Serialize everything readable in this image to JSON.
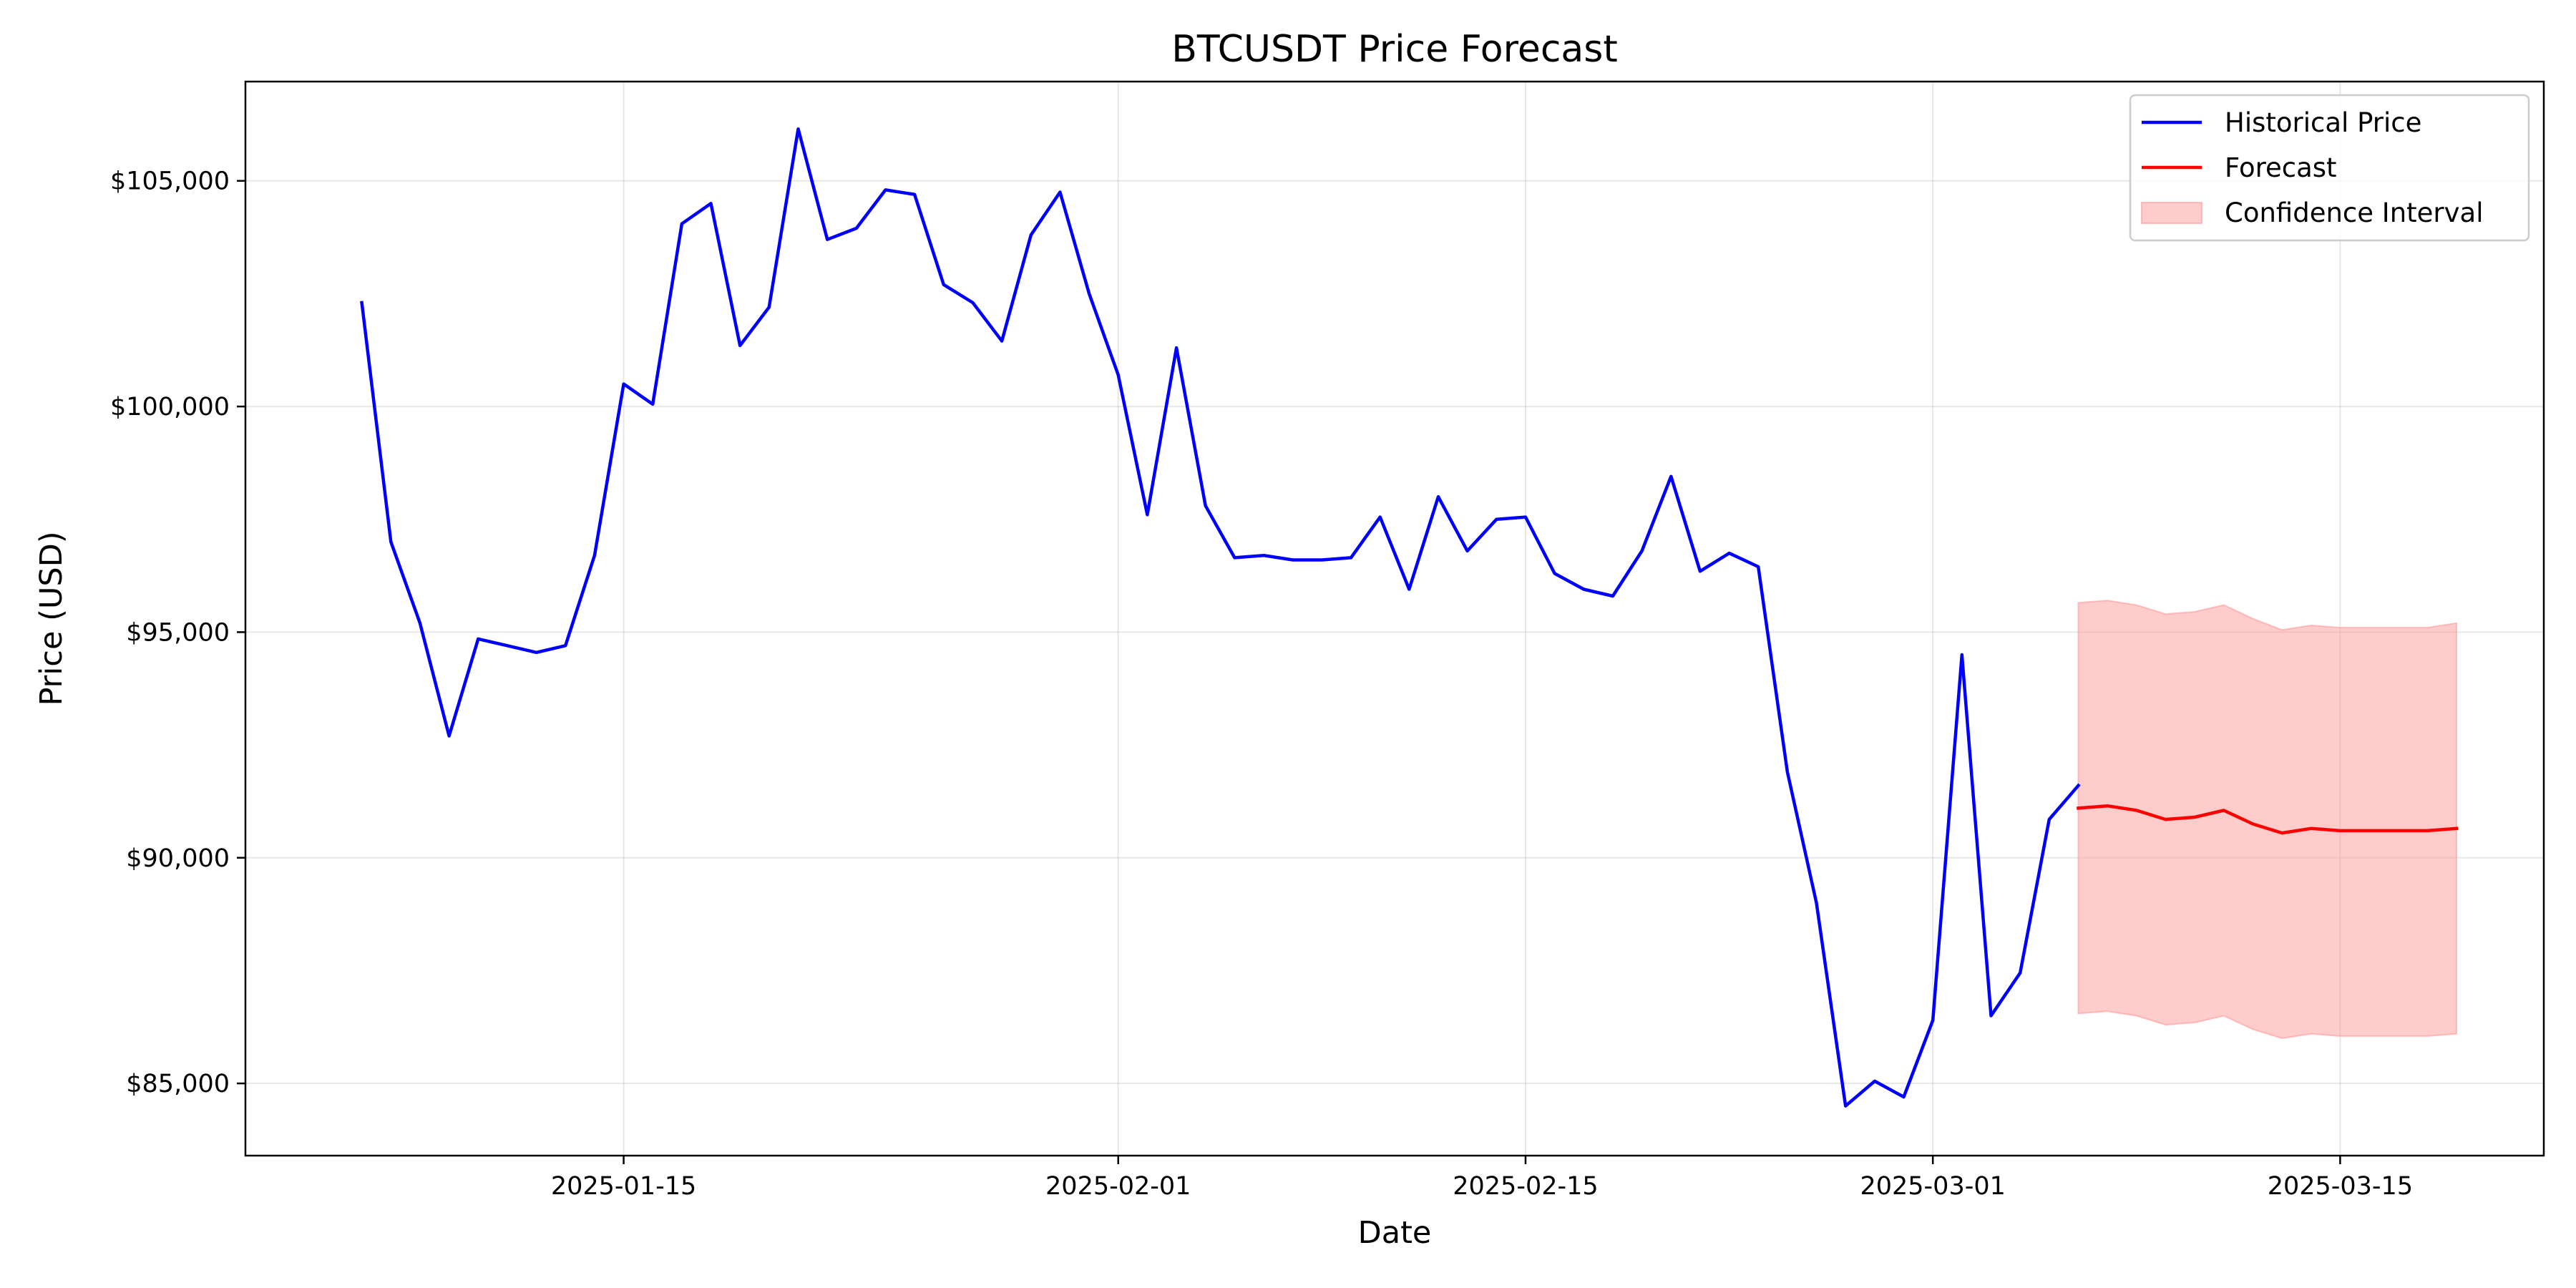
{
  "chart_data": {
    "type": "line",
    "title": "BTCUSDT Price Forecast",
    "xlabel": "Date",
    "ylabel": "Price (USD)",
    "x_ticks": [
      "2025-01-15",
      "2025-02-01",
      "2025-02-15",
      "2025-03-01",
      "2025-03-15"
    ],
    "y_ticks": [
      "$85,000",
      "$90,000",
      "$95,000",
      "$100,000",
      "$105,000"
    ],
    "y_tick_values": [
      85000,
      90000,
      95000,
      100000,
      105000
    ],
    "xlim": [
      "2025-01-02",
      "2025-03-22"
    ],
    "ylim": [
      83400,
      107200
    ],
    "grid": true,
    "legend_position": "top-right",
    "colors": {
      "historical": "#0000ff",
      "forecast": "#ff0000",
      "confidence": "#ff9999"
    },
    "legend": [
      {
        "label": "Historical Price",
        "kind": "line",
        "series": "historical"
      },
      {
        "label": "Forecast",
        "kind": "line",
        "series": "forecast"
      },
      {
        "label": "Confidence Interval",
        "kind": "patch",
        "series": "confidence"
      }
    ],
    "series": [
      {
        "name": "Historical Price",
        "key": "historical",
        "dates": [
          "2025-01-06",
          "2025-01-07",
          "2025-01-08",
          "2025-01-09",
          "2025-01-10",
          "2025-01-11",
          "2025-01-12",
          "2025-01-13",
          "2025-01-14",
          "2025-01-15",
          "2025-01-16",
          "2025-01-17",
          "2025-01-18",
          "2025-01-19",
          "2025-01-20",
          "2025-01-21",
          "2025-01-22",
          "2025-01-23",
          "2025-01-24",
          "2025-01-25",
          "2025-01-26",
          "2025-01-27",
          "2025-01-28",
          "2025-01-29",
          "2025-01-30",
          "2025-01-31",
          "2025-02-01",
          "2025-02-02",
          "2025-02-03",
          "2025-02-04",
          "2025-02-05",
          "2025-02-06",
          "2025-02-07",
          "2025-02-08",
          "2025-02-09",
          "2025-02-10",
          "2025-02-11",
          "2025-02-12",
          "2025-02-13",
          "2025-02-14",
          "2025-02-15",
          "2025-02-16",
          "2025-02-17",
          "2025-02-18",
          "2025-02-19",
          "2025-02-20",
          "2025-02-21",
          "2025-02-22",
          "2025-02-23",
          "2025-02-24",
          "2025-02-25",
          "2025-02-26",
          "2025-02-27",
          "2025-02-28",
          "2025-03-01",
          "2025-03-02",
          "2025-03-03",
          "2025-03-04",
          "2025-03-05",
          "2025-03-06"
        ],
        "values": [
          102300,
          97000,
          95200,
          92700,
          94850,
          94700,
          94550,
          94700,
          96700,
          100500,
          100050,
          104050,
          104500,
          101350,
          102200,
          106150,
          103700,
          103950,
          104800,
          104700,
          102700,
          102300,
          101450,
          103800,
          104750,
          102500,
          100700,
          97600,
          101300,
          97800,
          96650,
          96700,
          96600,
          96600,
          96650,
          97550,
          95950,
          98000,
          96800,
          97500,
          97550,
          96300,
          95950,
          95800,
          96800,
          98450,
          96350,
          96750,
          96450,
          91900,
          89000,
          84500,
          85050,
          84700,
          86400,
          94500,
          86500,
          87450,
          90850,
          91600
        ]
      },
      {
        "name": "Forecast",
        "key": "forecast",
        "dates": [
          "2025-03-06",
          "2025-03-07",
          "2025-03-08",
          "2025-03-09",
          "2025-03-10",
          "2025-03-11",
          "2025-03-12",
          "2025-03-13",
          "2025-03-14",
          "2025-03-15",
          "2025-03-16",
          "2025-03-17",
          "2025-03-18",
          "2025-03-19"
        ],
        "values": [
          91100,
          91150,
          91050,
          90850,
          90900,
          91050,
          90750,
          90550,
          90650,
          90600,
          90600,
          90600,
          90600,
          90650
        ]
      }
    ],
    "confidence_interval": {
      "name": "Confidence Interval",
      "dates": [
        "2025-03-06",
        "2025-03-07",
        "2025-03-08",
        "2025-03-09",
        "2025-03-10",
        "2025-03-11",
        "2025-03-12",
        "2025-03-13",
        "2025-03-14",
        "2025-03-15",
        "2025-03-16",
        "2025-03-17",
        "2025-03-18",
        "2025-03-19"
      ],
      "upper": [
        95650,
        95700,
        95600,
        95400,
        95450,
        95600,
        95300,
        95050,
        95150,
        95100,
        95100,
        95100,
        95100,
        95200
      ],
      "lower": [
        86550,
        86600,
        86500,
        86300,
        86350,
        86500,
        86200,
        86000,
        86100,
        86050,
        86050,
        86050,
        86050,
        86100
      ]
    }
  }
}
